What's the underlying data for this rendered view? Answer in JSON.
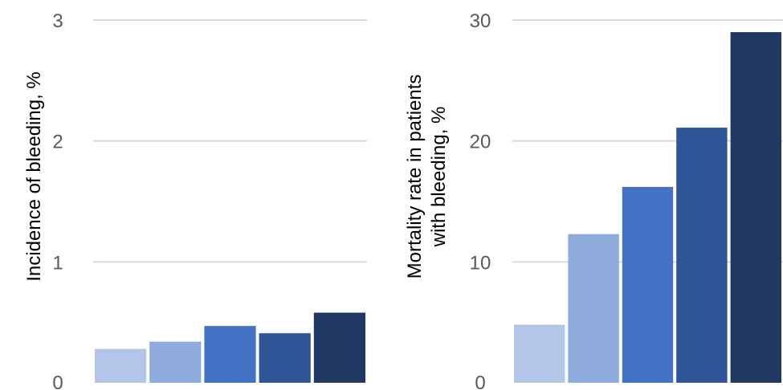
{
  "chart_data": [
    {
      "type": "bar",
      "ylabel": "Incidence of bleeding, %",
      "ylim": [
        0,
        3
      ],
      "yticks": [
        "0",
        "1",
        "2",
        "3"
      ],
      "grid": true,
      "values": [
        0.28,
        0.34,
        0.47,
        0.41,
        0.58
      ],
      "colors": [
        "#b4c6e7",
        "#8faadc",
        "#4472c4",
        "#2f5597",
        "#203864"
      ]
    },
    {
      "type": "bar",
      "ylabel_lines": [
        "Mortality rate in patients",
        "with bleeding, %"
      ],
      "ylim": [
        0,
        30
      ],
      "yticks": [
        "0",
        "10",
        "20",
        "30"
      ],
      "grid": true,
      "values": [
        4.8,
        12.3,
        16.2,
        21.1,
        29.0
      ],
      "colors": [
        "#b4c6e7",
        "#8faadc",
        "#4472c4",
        "#2f5597",
        "#203864"
      ]
    }
  ]
}
